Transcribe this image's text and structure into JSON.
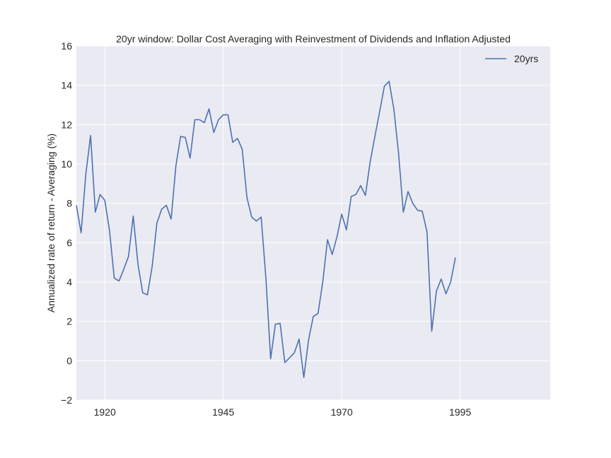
{
  "chart_data": {
    "type": "line",
    "title": "20yr window: Dollar Cost Averaging with Reinvestment of Dividends and Inflation Adjusted",
    "xlabel": "",
    "ylabel": "Annualized rate of return - Averaging (%)",
    "xlim": [
      1914,
      2014
    ],
    "ylim": [
      -2,
      16
    ],
    "xticks": [
      1920,
      1945,
      1970,
      1995
    ],
    "yticks": [
      -2,
      0,
      2,
      4,
      6,
      8,
      10,
      12,
      14,
      16
    ],
    "grid": true,
    "legend_position": "top-right",
    "background": "#eaeaf2",
    "series": [
      {
        "name": "20yrs",
        "color": "#4c72b0",
        "x": [
          1914,
          1915,
          1916,
          1917,
          1918,
          1919,
          1920,
          1921,
          1922,
          1923,
          1924,
          1925,
          1926,
          1927,
          1928,
          1929,
          1930,
          1931,
          1932,
          1933,
          1934,
          1935,
          1936,
          1937,
          1938,
          1939,
          1940,
          1941,
          1942,
          1943,
          1944,
          1945,
          1946,
          1947,
          1948,
          1949,
          1950,
          1951,
          1952,
          1953,
          1954,
          1955,
          1956,
          1957,
          1958,
          1959,
          1960,
          1961,
          1962,
          1963,
          1964,
          1965,
          1966,
          1967,
          1968,
          1969,
          1970,
          1971,
          1972,
          1973,
          1974,
          1975,
          1976,
          1977,
          1978,
          1979,
          1980,
          1981,
          1982,
          1983,
          1984,
          1985,
          1986,
          1987,
          1988,
          1989,
          1990,
          1991,
          1992,
          1993,
          1994
        ],
        "y": [
          7.9,
          6.5,
          9.5,
          11.45,
          7.55,
          8.45,
          8.15,
          6.6,
          4.2,
          4.05,
          4.65,
          5.3,
          7.35,
          4.9,
          3.45,
          3.35,
          4.8,
          7.0,
          7.7,
          7.9,
          7.2,
          9.9,
          11.4,
          11.35,
          10.3,
          12.25,
          12.25,
          12.1,
          12.8,
          11.6,
          12.25,
          12.5,
          12.5,
          11.1,
          11.3,
          10.75,
          8.3,
          7.3,
          7.1,
          7.3,
          4.2,
          0.1,
          1.85,
          1.9,
          -0.1,
          0.15,
          0.4,
          1.1,
          -0.85,
          1.05,
          2.25,
          2.4,
          4.0,
          6.15,
          5.4,
          6.3,
          7.45,
          6.65,
          8.35,
          8.45,
          8.9,
          8.4,
          10.1,
          11.4,
          12.65,
          13.95,
          14.2,
          12.8,
          10.55,
          7.55,
          8.6,
          8.0,
          7.65,
          7.6,
          6.55,
          1.5,
          3.55,
          4.15,
          3.4,
          4.0,
          5.25
        ]
      }
    ]
  }
}
